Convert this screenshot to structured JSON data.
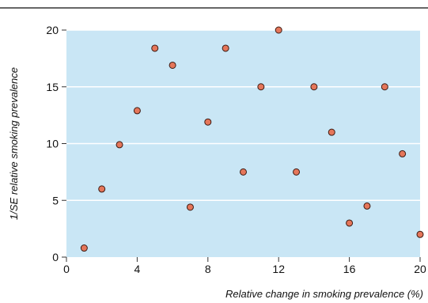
{
  "chart_data": {
    "type": "scatter",
    "xlabel": "Relative change in smoking prevalence (%)",
    "ylabel": "1/SE relative smoking prevalence",
    "xlim": [
      0,
      20
    ],
    "ylim": [
      0,
      20
    ],
    "x_ticks": [
      0,
      4,
      8,
      12,
      16,
      20
    ],
    "y_ticks": [
      0,
      5,
      10,
      15,
      20
    ],
    "grid": "horizontal",
    "colors": {
      "plot_background": "#c9e6f5",
      "gridline": "#ffffff",
      "marker_fill": "#e5765a",
      "marker_edge": "#3b1a12",
      "top_rule": "#333333"
    },
    "points": [
      {
        "x": 1,
        "y": 0.8
      },
      {
        "x": 2,
        "y": 6
      },
      {
        "x": 3,
        "y": 9.9
      },
      {
        "x": 4,
        "y": 12.9
      },
      {
        "x": 5,
        "y": 18.4
      },
      {
        "x": 6,
        "y": 16.9
      },
      {
        "x": 7,
        "y": 4.4
      },
      {
        "x": 8,
        "y": 11.9
      },
      {
        "x": 9,
        "y": 18.4
      },
      {
        "x": 10,
        "y": 7.5
      },
      {
        "x": 11,
        "y": 15
      },
      {
        "x": 12,
        "y": 20
      },
      {
        "x": 13,
        "y": 7.5
      },
      {
        "x": 14,
        "y": 15
      },
      {
        "x": 15,
        "y": 11
      },
      {
        "x": 16,
        "y": 3
      },
      {
        "x": 17,
        "y": 4.5
      },
      {
        "x": 18,
        "y": 15
      },
      {
        "x": 19,
        "y": 9.1
      },
      {
        "x": 20,
        "y": 2
      }
    ]
  }
}
